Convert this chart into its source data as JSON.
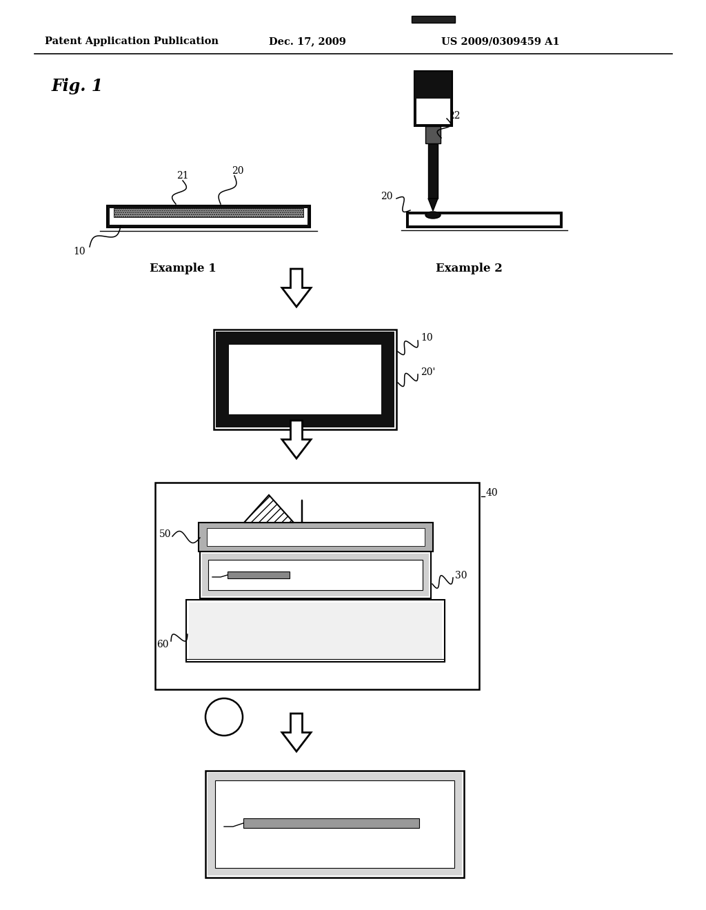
{
  "bg_color": "#ffffff",
  "header_left": "Patent Application Publication",
  "header_center": "Dec. 17, 2009",
  "header_right": "US 2009/0309459 A1",
  "fig_label": "Fig. 1",
  "ex1_label": "Example 1",
  "ex2_label": "Example 2"
}
